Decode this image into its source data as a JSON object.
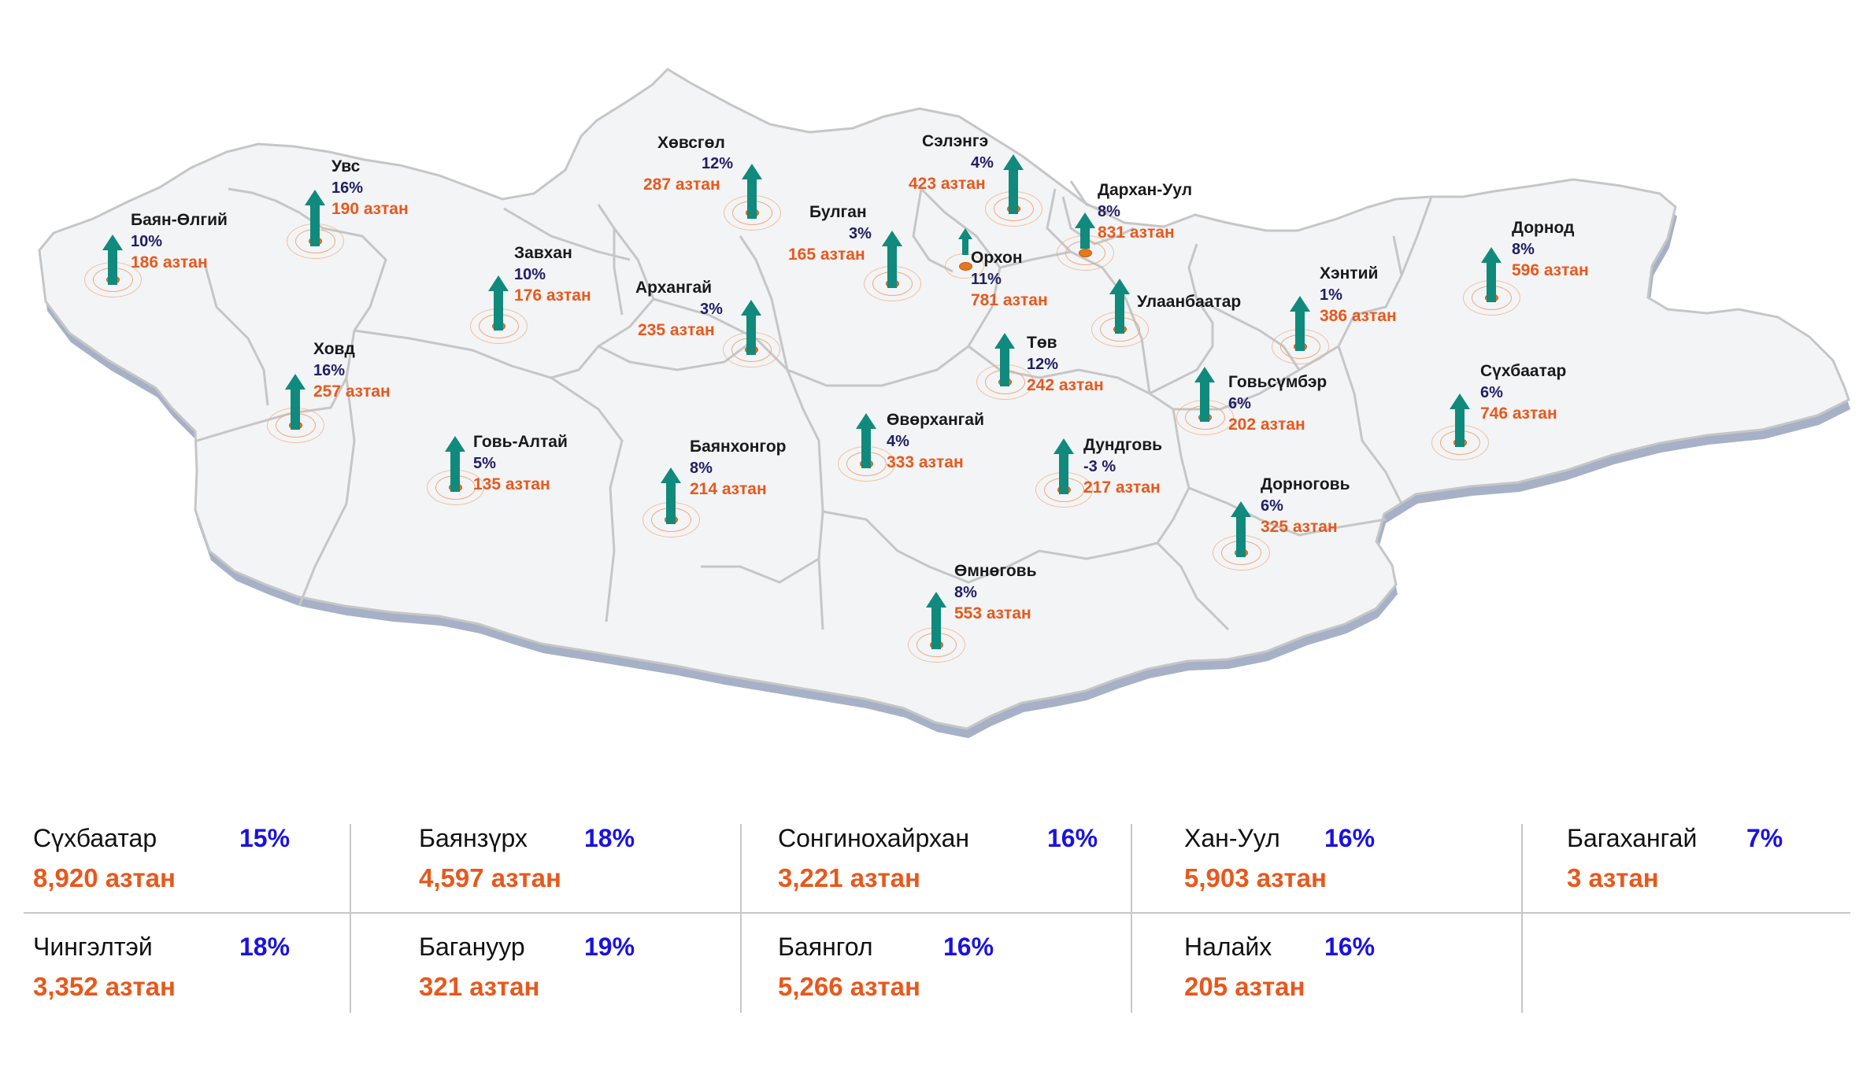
{
  "colors": {
    "accent": "#108a7c",
    "count": "#e8581c",
    "percent": "#1f1f66",
    "district_percent": "#1a12e0",
    "map_fill": "#f2f3f5",
    "map_shadow": "#a6b1c8",
    "border": "#c6c6c6"
  },
  "regions": [
    {
      "name": "Баян-Өлгий",
      "pct": "10%",
      "count": "186 aзтан"
    },
    {
      "name": "Увс",
      "pct": "16%",
      "count": "190 aзтан"
    },
    {
      "name": "Хөвсгөл",
      "pct": "12%",
      "count": "287 aзтан"
    },
    {
      "name": "Сэлэнгэ",
      "pct": "4%",
      "count": "423 aзтан"
    },
    {
      "name": "Дархан-Уул",
      "pct": "8%",
      "count": "831 aзтан"
    },
    {
      "name": "Завхан",
      "pct": "10%",
      "count": "176 aзтан"
    },
    {
      "name": "Булган",
      "pct": "3%",
      "count": "165 aзтан"
    },
    {
      "name": "Орхон",
      "pct": "11%",
      "count": "781 aзтан"
    },
    {
      "name": "Архангай",
      "pct": "3%",
      "count": "235 aзтан"
    },
    {
      "name": "Улаанбаатар",
      "pct": "",
      "count": ""
    },
    {
      "name": "Хэнтий",
      "pct": "1%",
      "count": "386 aзтан"
    },
    {
      "name": "Дорнод",
      "pct": "8%",
      "count": "596 aзтан"
    },
    {
      "name": "Ховд",
      "pct": "16%",
      "count": "257 aзтан"
    },
    {
      "name": "Төв",
      "pct": "12%",
      "count": "242 aзтан"
    },
    {
      "name": "Говьсүмбэр",
      "pct": "6%",
      "count": "202 aзтан"
    },
    {
      "name": "Сүхбаатар",
      "pct": "6%",
      "count": "746 aзтан"
    },
    {
      "name": "Өвөрхангай",
      "pct": "4%",
      "count": "333 aзтан"
    },
    {
      "name": "Говь-Алтай",
      "pct": "5%",
      "count": "135 aзтан"
    },
    {
      "name": "Баянхонгор",
      "pct": "8%",
      "count": "214 aзтан"
    },
    {
      "name": "Дундговь",
      "pct": "-3 %",
      "count": "217 aзтан"
    },
    {
      "name": "Дорноговь",
      "pct": "6%",
      "count": "325 aзтан"
    },
    {
      "name": "Өмнөговь",
      "pct": "8%",
      "count": "553 aзтан"
    }
  ],
  "districts": [
    {
      "name": "Сүхбаатар",
      "pct": "15%",
      "count": "8,920 aзтан"
    },
    {
      "name": "Баянзүрх",
      "pct": "18%",
      "count": "4,597 aзтан"
    },
    {
      "name": "Сонгинохайрхан",
      "pct": "16%",
      "count": "3,221 aзтан"
    },
    {
      "name": "Хан-Уул",
      "pct": "16%",
      "count": "5,903 aзтан"
    },
    {
      "name": "Багахангай",
      "pct": "7%",
      "count": "3 aзтан"
    },
    {
      "name": "Чингэлтэй",
      "pct": "18%",
      "count": " 3,352 aзтан"
    },
    {
      "name": "Багануур",
      "pct": "19%",
      "count": " 321 aзтан"
    },
    {
      "name": "Баянгол",
      "pct": "16%",
      "count": "5,266 aзтан"
    },
    {
      "name": "Налайх",
      "pct": "16%",
      "count": "205 aзтан"
    }
  ]
}
